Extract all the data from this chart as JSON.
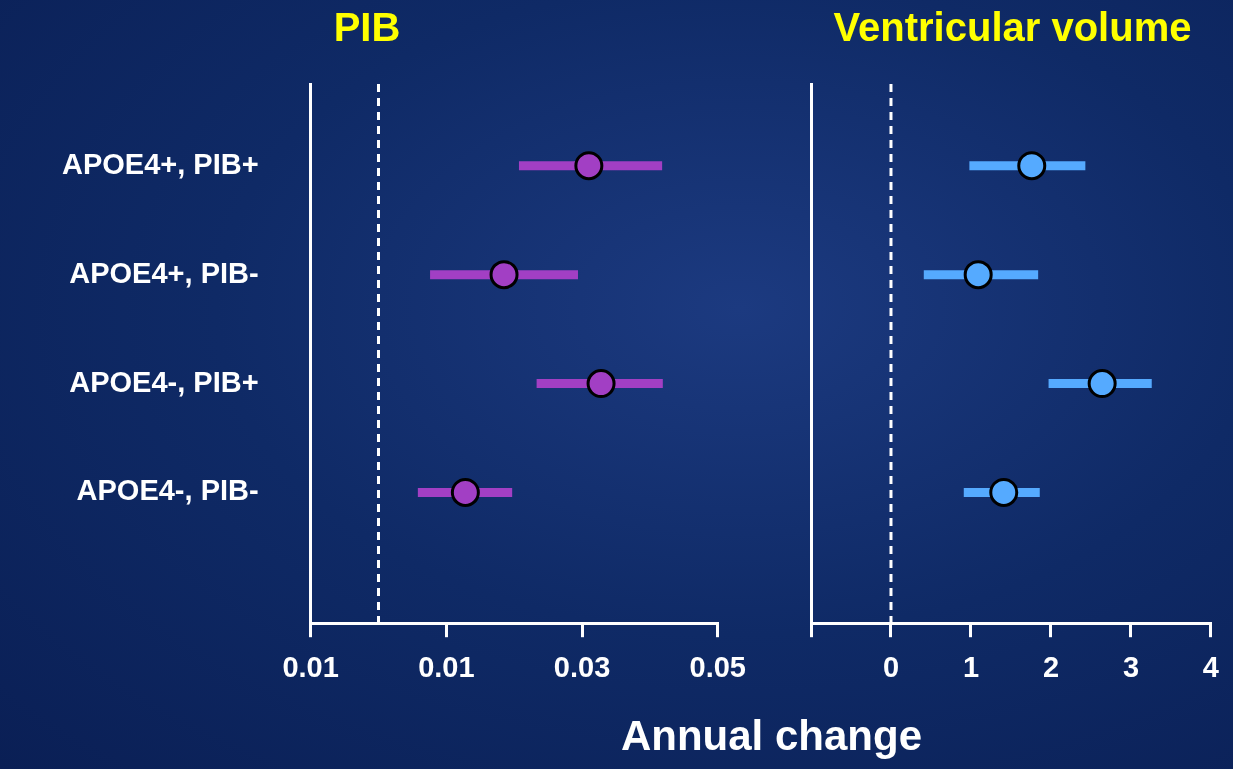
{
  "chart_data": [
    {
      "type": "scatter",
      "title": "PIB",
      "xlabel": "Annual change",
      "orientation": "horizontal",
      "categories": [
        "APOE4+, PIB+",
        "APOE4+, PIB-",
        "APOE4-, PIB+",
        "APOE4-, PIB-"
      ],
      "series": [
        {
          "color": "#a23fc4",
          "values": [
            0.031,
            0.0185,
            0.0328,
            0.0128
          ],
          "errors": [
            [
              0.0207,
              0.0418
            ],
            [
              0.0076,
              0.0294
            ],
            [
              0.0233,
              0.0419
            ],
            [
              0.0058,
              0.0197
            ]
          ]
        }
      ],
      "xlim": [
        -0.01,
        0.05
      ],
      "xticks": [
        {
          "value": -0.01,
          "label": "0.01"
        },
        0.01,
        0.03,
        0.05
      ],
      "marker": "circle",
      "grid": false,
      "legend": false,
      "ref_lines": [
        {
          "axis": "x",
          "value": 0,
          "color": "#ffffff",
          "line_style": "dashed"
        }
      ]
    },
    {
      "type": "scatter",
      "title": "Ventricular volume",
      "orientation": "horizontal",
      "categories": [
        null,
        null,
        null,
        null
      ],
      "series": [
        {
          "color": "#55aaff",
          "values": [
            1.76,
            1.09,
            2.64,
            1.41
          ],
          "errors": [
            [
              0.98,
              2.43
            ],
            [
              0.41,
              1.84
            ],
            [
              1.97,
              3.26
            ],
            [
              0.91,
              1.86
            ]
          ]
        }
      ],
      "xlim": [
        -1,
        4
      ],
      "xticks": [
        {
          "value": -1,
          "label": null
        },
        0,
        1,
        2,
        3,
        4
      ],
      "marker": "circle",
      "grid": false,
      "legend": false,
      "tick_labels": "x",
      "ref_lines": [
        {
          "axis": "x",
          "value": 0,
          "color": "#ffffff",
          "line_style": "dashed"
        }
      ]
    }
  ]
}
